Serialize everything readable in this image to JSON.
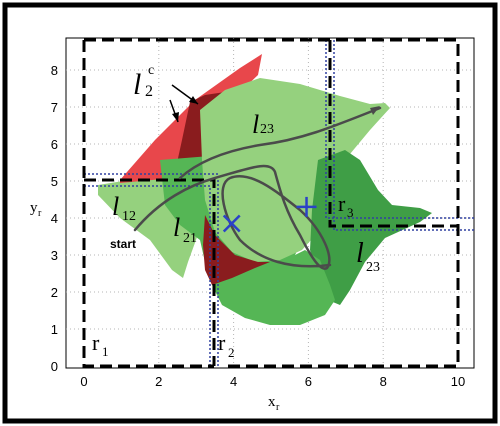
{
  "axes": {
    "xlabel": "x",
    "xlabel_sub": "r",
    "ylabel": "y",
    "ylabel_sub": "r",
    "xlim": [
      -0.5,
      10.5
    ],
    "ylim": [
      0,
      8.8
    ],
    "xticks": [
      "0",
      "2",
      "4",
      "6",
      "8",
      "10"
    ],
    "yticks": [
      "1",
      "2",
      "3",
      "4",
      "5",
      "6",
      "7",
      "8"
    ],
    "grid": true
  },
  "labels": {
    "l23_top": {
      "main": "l",
      "sub": "23"
    },
    "l2c": {
      "main": "l",
      "sub": "2",
      "sup": "c"
    },
    "l12": {
      "main": "l",
      "sub": "12"
    },
    "l21": {
      "main": "l",
      "sub": "21"
    },
    "l23_right": {
      "main": "l",
      "sub": "23"
    },
    "r1": {
      "main": "r",
      "sub": "1"
    },
    "r2": {
      "main": "r",
      "sub": "2"
    },
    "r3": {
      "main": "r",
      "sub": "3"
    },
    "start": "start"
  },
  "colors": {
    "frame": "#000000",
    "light_green": "#95d17e",
    "mid_green": "#55b655",
    "dark_green": "#3f9e46",
    "red": "#e8474b",
    "dark_red": "#8a1c1e",
    "trajectory": "#4b4b4b",
    "marker": "#2b43c7",
    "boundary": "#3040a0"
  },
  "markers": [
    {
      "x": 3.95,
      "y": 3.85,
      "shape": "x"
    },
    {
      "x": 5.95,
      "y": 4.3,
      "shape": "+"
    }
  ]
}
